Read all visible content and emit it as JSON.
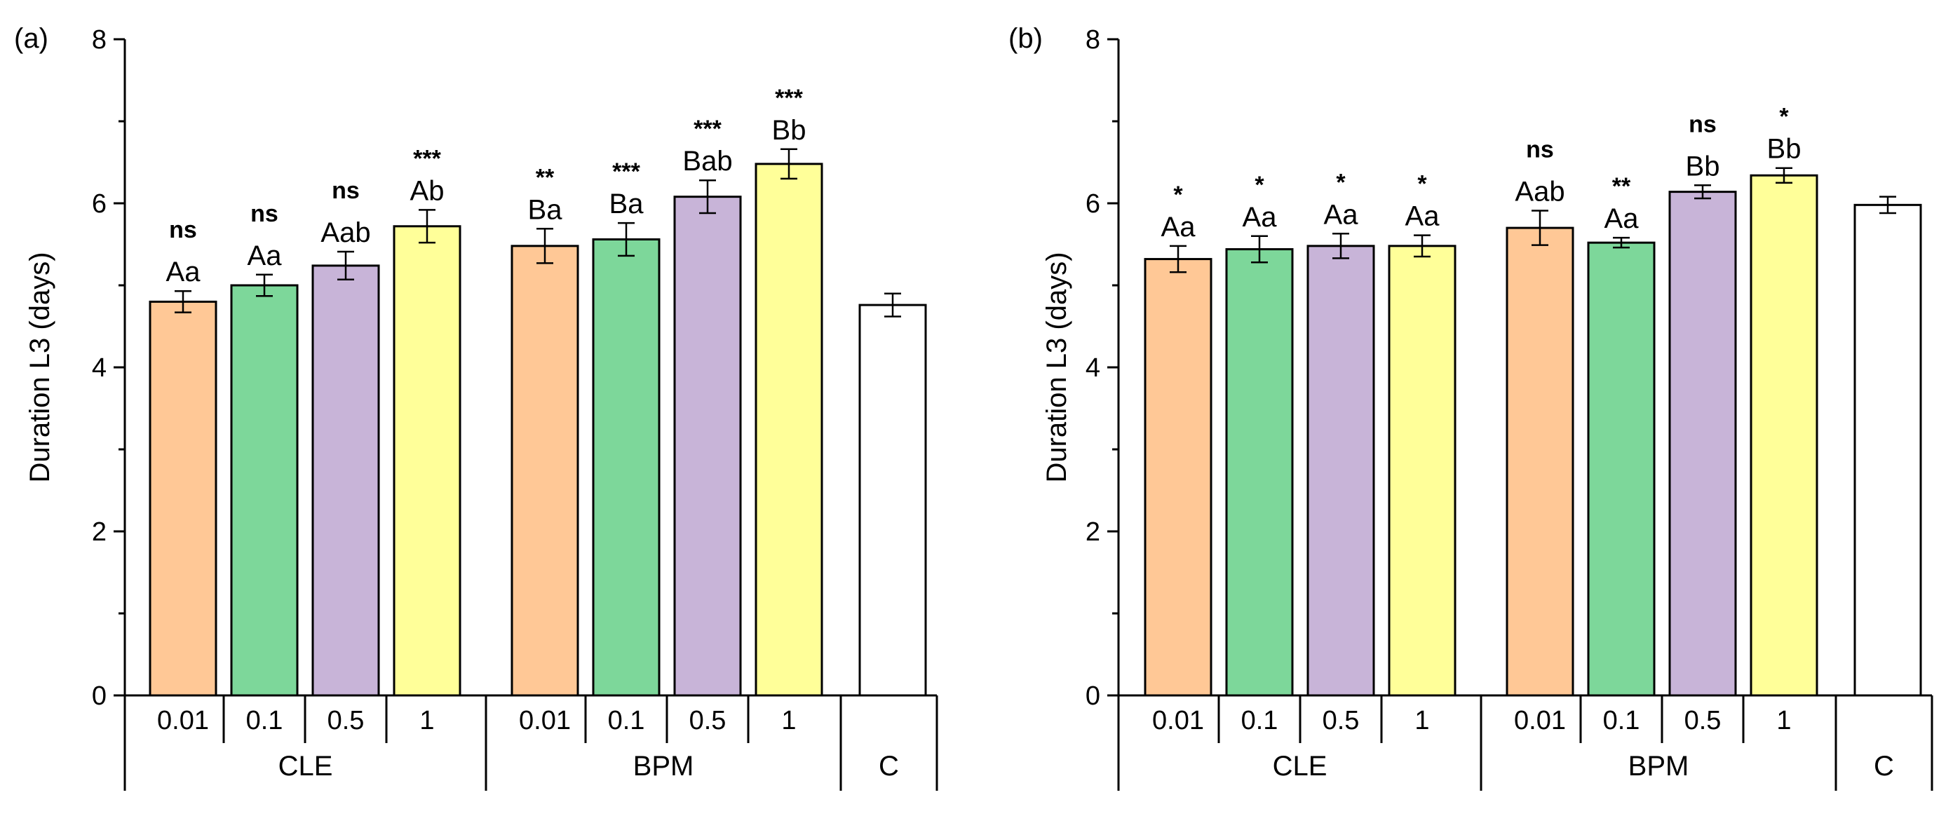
{
  "chart_data": [
    {
      "type": "bar",
      "panel": "(a)",
      "ylabel": "Duration L3 (days)",
      "ylim": [
        0,
        8
      ],
      "yticks": [
        0,
        2,
        4,
        6,
        8
      ],
      "colors": {
        "0.01": "#FFC896",
        "0.1": "#7DD79A",
        "0.5": "#C8B4D8",
        "1": "#FFFF99",
        "C": "#FFFFFF"
      },
      "groups": [
        {
          "name": "CLE",
          "bars": [
            {
              "cat": "0.01",
              "value": 4.8,
              "err": 0.13,
              "letters": "Aa",
              "sig": "ns"
            },
            {
              "cat": "0.1",
              "value": 5.0,
              "err": 0.13,
              "letters": "Aa",
              "sig": "ns"
            },
            {
              "cat": "0.5",
              "value": 5.24,
              "err": 0.17,
              "letters": "Aab",
              "sig": "ns"
            },
            {
              "cat": "1",
              "value": 5.72,
              "err": 0.2,
              "letters": "Ab",
              "sig": "***"
            }
          ]
        },
        {
          "name": "BPM",
          "bars": [
            {
              "cat": "0.01",
              "value": 5.48,
              "err": 0.21,
              "letters": "Ba",
              "sig": "**"
            },
            {
              "cat": "0.1",
              "value": 5.56,
              "err": 0.2,
              "letters": "Ba",
              "sig": "***"
            },
            {
              "cat": "0.5",
              "value": 6.08,
              "err": 0.2,
              "letters": "Bab",
              "sig": "***"
            },
            {
              "cat": "1",
              "value": 6.48,
              "err": 0.18,
              "letters": "Bb",
              "sig": "***"
            }
          ]
        },
        {
          "name": "C",
          "bars": [
            {
              "cat": "C",
              "value": 4.76,
              "err": 0.14,
              "letters": "",
              "sig": ""
            }
          ]
        }
      ]
    },
    {
      "type": "bar",
      "panel": "(b)",
      "ylabel": "Duration L3 (days)",
      "ylim": [
        0,
        8
      ],
      "yticks": [
        0,
        2,
        4,
        6,
        8
      ],
      "colors": {
        "0.01": "#FFC896",
        "0.1": "#7DD79A",
        "0.5": "#C8B4D8",
        "1": "#FFFF99",
        "C": "#FFFFFF"
      },
      "groups": [
        {
          "name": "CLE",
          "bars": [
            {
              "cat": "0.01",
              "value": 5.32,
              "err": 0.16,
              "letters": "Aa",
              "sig": "*"
            },
            {
              "cat": "0.1",
              "value": 5.44,
              "err": 0.16,
              "letters": "Aa",
              "sig": "*"
            },
            {
              "cat": "0.5",
              "value": 5.48,
              "err": 0.15,
              "letters": "Aa",
              "sig": "*"
            },
            {
              "cat": "1",
              "value": 5.48,
              "err": 0.13,
              "letters": "Aa",
              "sig": "*"
            }
          ]
        },
        {
          "name": "BPM",
          "bars": [
            {
              "cat": "0.01",
              "value": 5.7,
              "err": 0.21,
              "letters": "Aab",
              "sig": "ns"
            },
            {
              "cat": "0.1",
              "value": 5.52,
              "err": 0.06,
              "letters": "Aa",
              "sig": "**"
            },
            {
              "cat": "0.5",
              "value": 6.14,
              "err": 0.08,
              "letters": "Bb",
              "sig": "ns"
            },
            {
              "cat": "1",
              "value": 6.34,
              "err": 0.09,
              "letters": "Bb",
              "sig": "*"
            }
          ]
        },
        {
          "name": "C",
          "bars": [
            {
              "cat": "C",
              "value": 5.98,
              "err": 0.1,
              "letters": "",
              "sig": ""
            }
          ]
        }
      ]
    }
  ]
}
